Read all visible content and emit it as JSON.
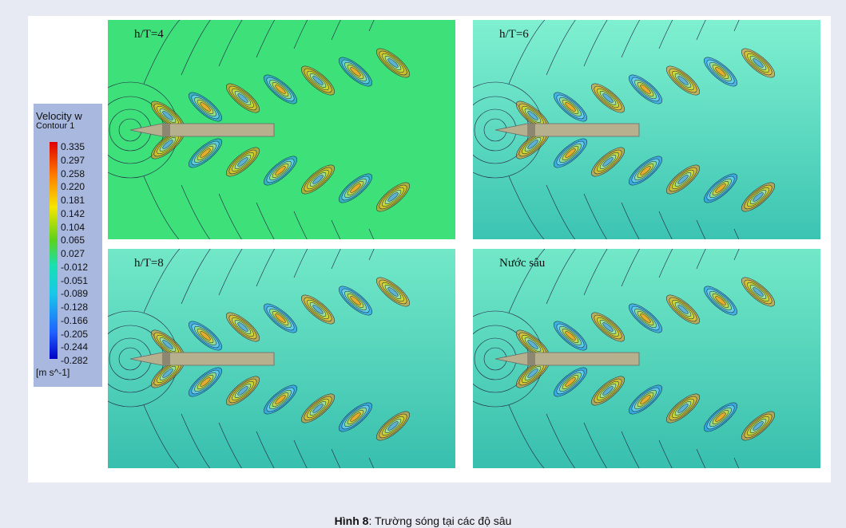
{
  "legend": {
    "title": "Velocity w",
    "subtitle": "Contour 1",
    "levels": [
      "0.335",
      "0.297",
      "0.258",
      "0.220",
      "0.181",
      "0.142",
      "0.104",
      "0.065",
      "0.027",
      "-0.012",
      "-0.051",
      "-0.089",
      "-0.128",
      "-0.166",
      "-0.205",
      "-0.244",
      "-0.282"
    ],
    "unit": "[m s^-1]"
  },
  "panels": [
    {
      "label": "h/T=4"
    },
    {
      "label": "h/T=6"
    },
    {
      "label": "h/T=8"
    },
    {
      "label": "Nước sâu"
    }
  ],
  "caption": {
    "number": "Hình 8",
    "text": ": Trường sóng tại các độ sâu"
  }
}
